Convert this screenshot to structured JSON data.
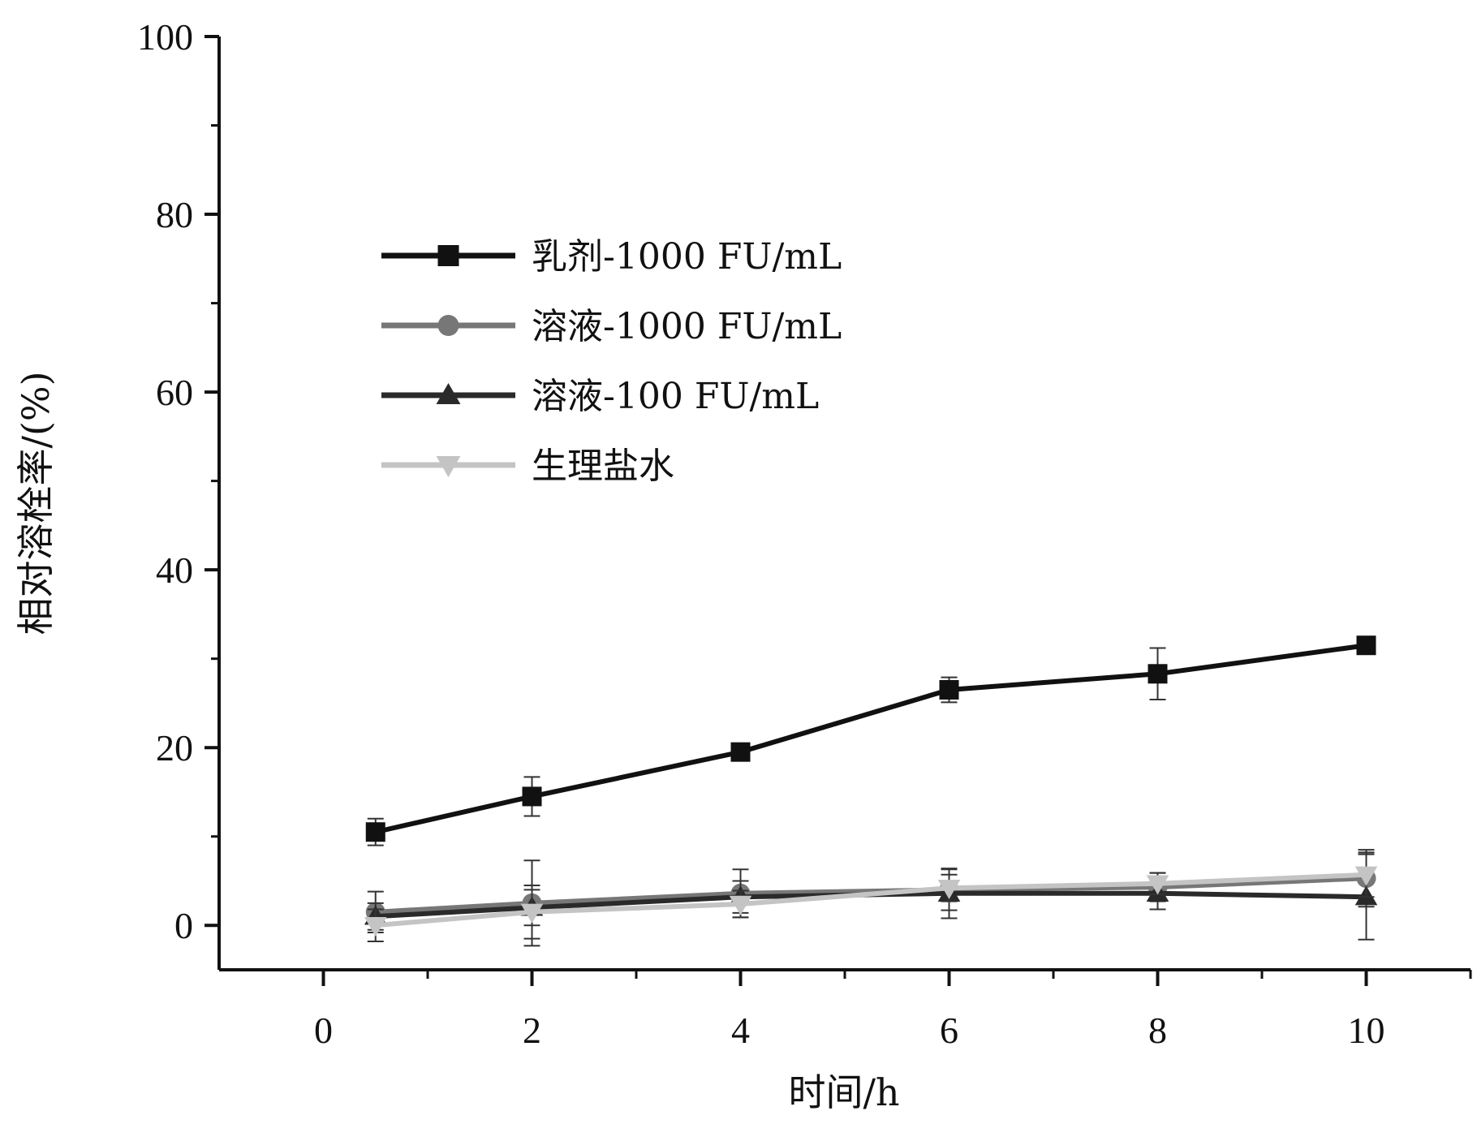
{
  "chart_data": {
    "type": "line",
    "xlabel": "时间/h",
    "ylabel": "相对溶栓率/(%)",
    "xlim": [
      -1,
      11
    ],
    "ylim": [
      -5,
      100
    ],
    "xticks": [
      "0",
      "2",
      "4",
      "6",
      "8",
      "10"
    ],
    "yticks": [
      "0",
      "20",
      "40",
      "60",
      "80",
      "100"
    ],
    "legend_position": "upper-left",
    "grid": false,
    "series": [
      {
        "name": "乳剂-1000 FU/mL",
        "marker": "square",
        "color": "#111111",
        "x": [
          0.5,
          2,
          4,
          6,
          8,
          10
        ],
        "y": [
          10.5,
          14.5,
          19.5,
          26.5,
          28.3,
          31.5
        ],
        "error": [
          1.5,
          2.2,
          0.8,
          1.4,
          2.9,
          0.8
        ]
      },
      {
        "name": "溶液-1000 FU/mL",
        "marker": "circle",
        "color": "#777777",
        "x": [
          0.5,
          2,
          4,
          6,
          8,
          10
        ],
        "y": [
          1.5,
          2.5,
          3.6,
          4.0,
          4.3,
          5.3
        ],
        "error": [
          2.3,
          4.8,
          2.7,
          2.3,
          1.6,
          3.2
        ]
      },
      {
        "name": "溶液-100 FU/mL",
        "marker": "triangle-up",
        "color": "#2a2a2a",
        "x": [
          0.5,
          2,
          4,
          6,
          8,
          10
        ],
        "y": [
          1.0,
          2.0,
          3.2,
          3.6,
          3.6,
          3.2
        ],
        "error": [
          1.5,
          2.0,
          1.8,
          2.8,
          1.8,
          4.8
        ]
      },
      {
        "name": "生理盐水",
        "marker": "triangle-down",
        "color": "#c4c4c4",
        "x": [
          0.5,
          2,
          4,
          6,
          8,
          10
        ],
        "y": [
          0.0,
          1.5,
          2.4,
          4.2,
          4.7,
          5.7
        ],
        "error": [
          1.8,
          3.0,
          1.5,
          1.5,
          1.2,
          2.5
        ]
      }
    ]
  }
}
